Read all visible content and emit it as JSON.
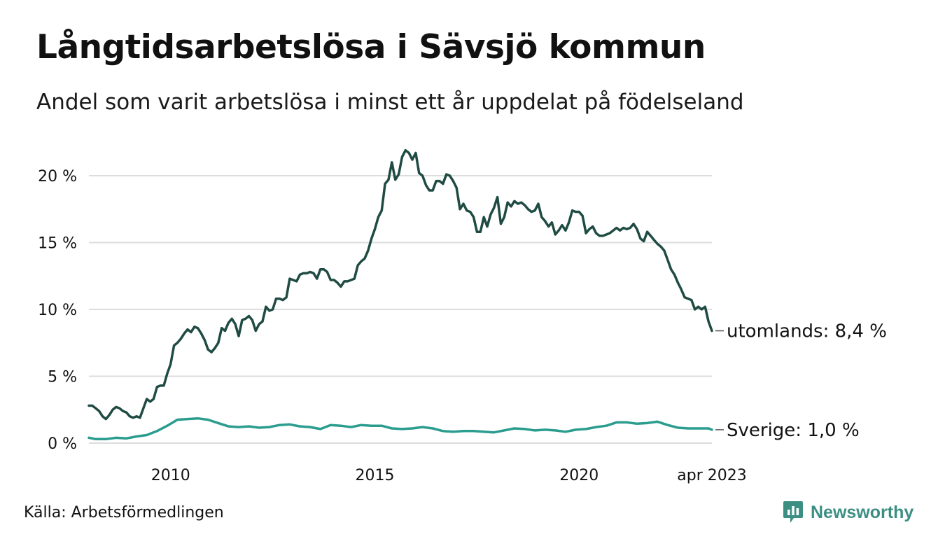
{
  "title": "Långtidsarbetslösa i Sävsjö kommun",
  "subtitle": "Andel som varit arbetslösa i minst ett år uppdelat på födelseland",
  "source": "Källa: Arbetsförmedlingen",
  "brand": {
    "name": "Newsworthy",
    "icon": "newsworthy-logo-icon"
  },
  "colors": {
    "utomlands": "#1f4b43",
    "sverige": "#2a9d8f",
    "grid": "#dddddd",
    "brand": "#3d8f84"
  },
  "chart_data": {
    "type": "line",
    "title": "Långtidsarbetslösa i Sävsjö kommun",
    "subtitle": "Andel som varit arbetslösa i minst ett år uppdelat på födelseland",
    "x_start": "2008-01",
    "x_end": "2023-04",
    "x_ticks": [
      {
        "label": "2010",
        "date": "2010-01"
      },
      {
        "label": "2015",
        "date": "2015-01"
      },
      {
        "label": "2020",
        "date": "2020-01"
      },
      {
        "label": "apr 2023",
        "date": "2023-04"
      }
    ],
    "y_ticks": [
      {
        "label": "0 %",
        "value": 0
      },
      {
        "label": "5 %",
        "value": 5
      },
      {
        "label": "10 %",
        "value": 10
      },
      {
        "label": "15 %",
        "value": 15
      },
      {
        "label": "20 %",
        "value": 20
      }
    ],
    "ylim": [
      0,
      22
    ],
    "grid": true,
    "series": [
      {
        "key": "utomlands",
        "label": "utomlands: 8,4 %",
        "color": "#1f4b43",
        "points": [
          [
            "2008-01",
            2.8
          ],
          [
            "2008-02",
            2.8
          ],
          [
            "2008-03",
            2.6
          ],
          [
            "2008-04",
            2.4
          ],
          [
            "2008-05",
            2.0
          ],
          [
            "2008-06",
            1.8
          ],
          [
            "2008-07",
            2.1
          ],
          [
            "2008-08",
            2.5
          ],
          [
            "2008-09",
            2.7
          ],
          [
            "2008-10",
            2.6
          ],
          [
            "2008-11",
            2.4
          ],
          [
            "2008-12",
            2.3
          ],
          [
            "2009-01",
            2.0
          ],
          [
            "2009-02",
            1.9
          ],
          [
            "2009-03",
            2.0
          ],
          [
            "2009-04",
            1.9
          ],
          [
            "2009-05",
            2.6
          ],
          [
            "2009-06",
            3.3
          ],
          [
            "2009-07",
            3.1
          ],
          [
            "2009-08",
            3.3
          ],
          [
            "2009-09",
            4.2
          ],
          [
            "2009-10",
            4.3
          ],
          [
            "2009-11",
            4.3
          ],
          [
            "2009-12",
            5.2
          ],
          [
            "2010-01",
            5.9
          ],
          [
            "2010-02",
            7.3
          ],
          [
            "2010-03",
            7.5
          ],
          [
            "2010-04",
            7.8
          ],
          [
            "2010-05",
            8.2
          ],
          [
            "2010-06",
            8.5
          ],
          [
            "2010-07",
            8.3
          ],
          [
            "2010-08",
            8.7
          ],
          [
            "2010-09",
            8.6
          ],
          [
            "2010-10",
            8.2
          ],
          [
            "2010-11",
            7.7
          ],
          [
            "2010-12",
            7.0
          ],
          [
            "2011-01",
            6.8
          ],
          [
            "2011-02",
            7.1
          ],
          [
            "2011-03",
            7.5
          ],
          [
            "2011-04",
            8.6
          ],
          [
            "2011-05",
            8.4
          ],
          [
            "2011-06",
            9.0
          ],
          [
            "2011-07",
            9.3
          ],
          [
            "2011-08",
            8.9
          ],
          [
            "2011-09",
            8.0
          ],
          [
            "2011-10",
            9.2
          ],
          [
            "2011-11",
            9.3
          ],
          [
            "2011-12",
            9.5
          ],
          [
            "2012-01",
            9.2
          ],
          [
            "2012-02",
            8.4
          ],
          [
            "2012-03",
            8.9
          ],
          [
            "2012-04",
            9.1
          ],
          [
            "2012-05",
            10.2
          ],
          [
            "2012-06",
            9.9
          ],
          [
            "2012-07",
            10.0
          ],
          [
            "2012-08",
            10.8
          ],
          [
            "2012-09",
            10.8
          ],
          [
            "2012-10",
            10.7
          ],
          [
            "2012-11",
            10.9
          ],
          [
            "2012-12",
            12.3
          ],
          [
            "2013-01",
            12.2
          ],
          [
            "2013-02",
            12.1
          ],
          [
            "2013-03",
            12.6
          ],
          [
            "2013-04",
            12.7
          ],
          [
            "2013-05",
            12.7
          ],
          [
            "2013-06",
            12.8
          ],
          [
            "2013-07",
            12.7
          ],
          [
            "2013-08",
            12.3
          ],
          [
            "2013-09",
            13.0
          ],
          [
            "2013-10",
            13.0
          ],
          [
            "2013-11",
            12.8
          ],
          [
            "2013-12",
            12.2
          ],
          [
            "2014-01",
            12.2
          ],
          [
            "2014-02",
            12.0
          ],
          [
            "2014-03",
            11.7
          ],
          [
            "2014-04",
            12.1
          ],
          [
            "2014-05",
            12.1
          ],
          [
            "2014-06",
            12.2
          ],
          [
            "2014-07",
            12.3
          ],
          [
            "2014-08",
            13.3
          ],
          [
            "2014-09",
            13.6
          ],
          [
            "2014-10",
            13.8
          ],
          [
            "2014-11",
            14.4
          ],
          [
            "2014-12",
            15.3
          ],
          [
            "2015-01",
            16.0
          ],
          [
            "2015-02",
            16.9
          ],
          [
            "2015-03",
            17.4
          ],
          [
            "2015-04",
            19.4
          ],
          [
            "2015-05",
            19.7
          ],
          [
            "2015-06",
            21.0
          ],
          [
            "2015-07",
            19.7
          ],
          [
            "2015-08",
            20.1
          ],
          [
            "2015-09",
            21.4
          ],
          [
            "2015-10",
            21.9
          ],
          [
            "2015-11",
            21.7
          ],
          [
            "2015-12",
            21.2
          ],
          [
            "2016-01",
            21.7
          ],
          [
            "2016-02",
            20.2
          ],
          [
            "2016-03",
            20.0
          ],
          [
            "2016-04",
            19.3
          ],
          [
            "2016-05",
            18.9
          ],
          [
            "2016-06",
            18.9
          ],
          [
            "2016-07",
            19.6
          ],
          [
            "2016-08",
            19.6
          ],
          [
            "2016-09",
            19.4
          ],
          [
            "2016-10",
            20.1
          ],
          [
            "2016-11",
            20.0
          ],
          [
            "2016-12",
            19.6
          ],
          [
            "2017-01",
            19.1
          ],
          [
            "2017-02",
            17.5
          ],
          [
            "2017-03",
            17.9
          ],
          [
            "2017-04",
            17.4
          ],
          [
            "2017-05",
            17.3
          ],
          [
            "2017-06",
            16.9
          ],
          [
            "2017-07",
            15.8
          ],
          [
            "2017-08",
            15.8
          ],
          [
            "2017-09",
            16.9
          ],
          [
            "2017-10",
            16.2
          ],
          [
            "2017-11",
            17.1
          ],
          [
            "2017-12",
            17.6
          ],
          [
            "2018-01",
            18.4
          ],
          [
            "2018-02",
            16.4
          ],
          [
            "2018-03",
            16.9
          ],
          [
            "2018-04",
            18.0
          ],
          [
            "2018-05",
            17.7
          ],
          [
            "2018-06",
            18.1
          ],
          [
            "2018-07",
            17.9
          ],
          [
            "2018-08",
            18.0
          ],
          [
            "2018-09",
            17.8
          ],
          [
            "2018-10",
            17.5
          ],
          [
            "2018-11",
            17.3
          ],
          [
            "2018-12",
            17.4
          ],
          [
            "2019-01",
            17.9
          ],
          [
            "2019-02",
            16.9
          ],
          [
            "2019-03",
            16.6
          ],
          [
            "2019-04",
            16.2
          ],
          [
            "2019-05",
            16.5
          ],
          [
            "2019-06",
            15.6
          ],
          [
            "2019-07",
            15.9
          ],
          [
            "2019-08",
            16.3
          ],
          [
            "2019-09",
            15.9
          ],
          [
            "2019-10",
            16.5
          ],
          [
            "2019-11",
            17.4
          ],
          [
            "2019-12",
            17.3
          ],
          [
            "2020-01",
            17.3
          ],
          [
            "2020-02",
            17.0
          ],
          [
            "2020-03",
            15.7
          ],
          [
            "2020-04",
            16.0
          ],
          [
            "2020-05",
            16.2
          ],
          [
            "2020-06",
            15.7
          ],
          [
            "2020-07",
            15.5
          ],
          [
            "2020-08",
            15.5
          ],
          [
            "2020-09",
            15.6
          ],
          [
            "2020-10",
            15.7
          ],
          [
            "2020-11",
            15.9
          ],
          [
            "2020-12",
            16.1
          ],
          [
            "2021-01",
            15.9
          ],
          [
            "2021-02",
            16.1
          ],
          [
            "2021-03",
            16.0
          ],
          [
            "2021-04",
            16.1
          ],
          [
            "2021-05",
            16.4
          ],
          [
            "2021-06",
            16.0
          ],
          [
            "2021-07",
            15.3
          ],
          [
            "2021-08",
            15.1
          ],
          [
            "2021-09",
            15.8
          ],
          [
            "2021-10",
            15.5
          ],
          [
            "2021-11",
            15.2
          ],
          [
            "2021-12",
            14.9
          ],
          [
            "2022-01",
            14.7
          ],
          [
            "2022-02",
            14.4
          ],
          [
            "2022-03",
            13.7
          ],
          [
            "2022-04",
            13.0
          ],
          [
            "2022-05",
            12.6
          ],
          [
            "2022-06",
            12.0
          ],
          [
            "2022-07",
            11.5
          ],
          [
            "2022-08",
            10.9
          ],
          [
            "2022-09",
            10.8
          ],
          [
            "2022-10",
            10.7
          ],
          [
            "2022-11",
            10.0
          ],
          [
            "2022-12",
            10.2
          ],
          [
            "2023-01",
            10.0
          ],
          [
            "2023-02",
            10.2
          ],
          [
            "2023-03",
            9.1
          ],
          [
            "2023-04",
            8.4
          ]
        ]
      },
      {
        "key": "sverige",
        "label": "Sverige: 1,0 %",
        "color": "#2a9d8f",
        "points": [
          [
            "2008-01",
            0.4
          ],
          [
            "2008-03",
            0.3
          ],
          [
            "2008-06",
            0.3
          ],
          [
            "2008-09",
            0.4
          ],
          [
            "2008-12",
            0.35
          ],
          [
            "2009-03",
            0.5
          ],
          [
            "2009-06",
            0.6
          ],
          [
            "2009-09",
            0.9
          ],
          [
            "2009-12",
            1.3
          ],
          [
            "2010-03",
            1.75
          ],
          [
            "2010-06",
            1.8
          ],
          [
            "2010-09",
            1.85
          ],
          [
            "2010-12",
            1.75
          ],
          [
            "2011-03",
            1.5
          ],
          [
            "2011-06",
            1.25
          ],
          [
            "2011-09",
            1.2
          ],
          [
            "2011-12",
            1.25
          ],
          [
            "2012-03",
            1.15
          ],
          [
            "2012-06",
            1.2
          ],
          [
            "2012-09",
            1.35
          ],
          [
            "2012-12",
            1.4
          ],
          [
            "2013-03",
            1.25
          ],
          [
            "2013-06",
            1.2
          ],
          [
            "2013-09",
            1.05
          ],
          [
            "2013-12",
            1.35
          ],
          [
            "2014-03",
            1.3
          ],
          [
            "2014-06",
            1.2
          ],
          [
            "2014-09",
            1.35
          ],
          [
            "2014-12",
            1.3
          ],
          [
            "2015-03",
            1.3
          ],
          [
            "2015-06",
            1.1
          ],
          [
            "2015-09",
            1.05
          ],
          [
            "2015-12",
            1.1
          ],
          [
            "2016-03",
            1.2
          ],
          [
            "2016-06",
            1.1
          ],
          [
            "2016-09",
            0.9
          ],
          [
            "2016-12",
            0.85
          ],
          [
            "2017-03",
            0.9
          ],
          [
            "2017-06",
            0.9
          ],
          [
            "2017-09",
            0.85
          ],
          [
            "2017-12",
            0.8
          ],
          [
            "2018-03",
            0.95
          ],
          [
            "2018-06",
            1.1
          ],
          [
            "2018-09",
            1.05
          ],
          [
            "2018-12",
            0.95
          ],
          [
            "2019-03",
            1.0
          ],
          [
            "2019-06",
            0.95
          ],
          [
            "2019-09",
            0.85
          ],
          [
            "2019-12",
            1.0
          ],
          [
            "2020-03",
            1.05
          ],
          [
            "2020-06",
            1.2
          ],
          [
            "2020-09",
            1.3
          ],
          [
            "2020-12",
            1.55
          ],
          [
            "2021-03",
            1.55
          ],
          [
            "2021-06",
            1.45
          ],
          [
            "2021-09",
            1.5
          ],
          [
            "2021-12",
            1.6
          ],
          [
            "2022-03",
            1.35
          ],
          [
            "2022-06",
            1.15
          ],
          [
            "2022-09",
            1.1
          ],
          [
            "2022-12",
            1.1
          ],
          [
            "2023-03",
            1.1
          ],
          [
            "2023-04",
            1.0
          ]
        ]
      }
    ]
  }
}
